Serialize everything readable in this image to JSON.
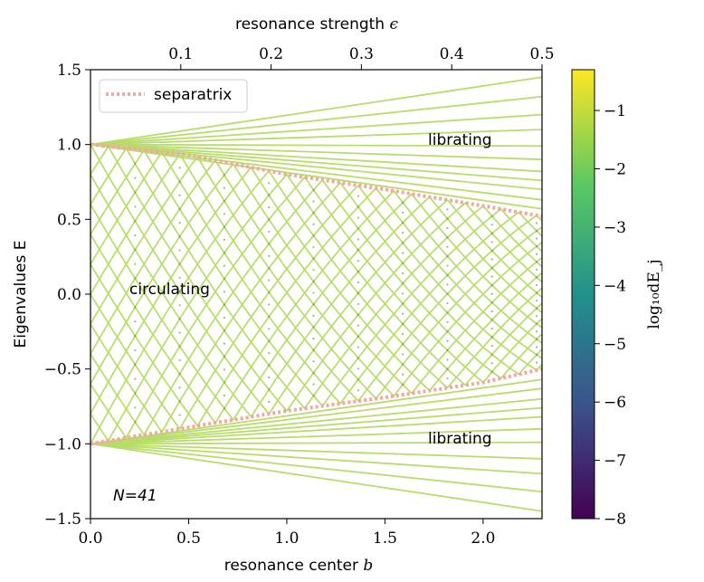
{
  "chart_data": {
    "type": "line",
    "xlabel": "resonance center",
    "xlabel_var": "b",
    "top_xlabel": "resonance strength",
    "top_xlabel_var": "ϵ",
    "ylabel": "Eigenvalues E",
    "colorbar_label": "log₁₀dE_j",
    "xlim": [
      0.0,
      2.3
    ],
    "ylim": [
      -1.5,
      1.5
    ],
    "top_xlim": [
      0.0,
      0.5
    ],
    "xticks": [
      "0.0",
      "0.5",
      "1.0",
      "1.5",
      "2.0"
    ],
    "yticks": [
      "−1.5",
      "−1.0",
      "−0.5",
      "0.0",
      "0.5",
      "1.0",
      "1.5"
    ],
    "top_xticks": [
      "0.1",
      "0.2",
      "0.3",
      "0.4",
      "0.5"
    ],
    "colorbar_range": [
      -8,
      -0.3
    ],
    "colorbar_ticks": [
      "−1",
      "−2",
      "−3",
      "−4",
      "−5",
      "−6",
      "−7",
      "−8"
    ],
    "colormap": [
      "#440154",
      "#3b528b",
      "#21918c",
      "#5ec962",
      "#fde725"
    ],
    "line_color": "#b8dc6a",
    "separatrix_color": "#f4a6a0",
    "N": 41,
    "legend": {
      "label": "separatrix",
      "position": "upper-left"
    },
    "annotations": {
      "librating_top": "librating",
      "librating_bottom": "librating",
      "circulating": "circulating",
      "n_label": "N=41"
    },
    "separatrix_upper": [
      [
        0.0,
        1.0
      ],
      [
        0.5,
        0.93
      ],
      [
        1.0,
        0.8
      ],
      [
        1.5,
        0.7
      ],
      [
        2.0,
        0.59
      ],
      [
        2.3,
        0.52
      ]
    ],
    "separatrix_lower": [
      [
        0.0,
        -1.0
      ],
      [
        0.5,
        -0.89
      ],
      [
        1.0,
        -0.78
      ],
      [
        1.5,
        -0.69
      ],
      [
        2.0,
        -0.59
      ],
      [
        2.3,
        -0.5
      ]
    ],
    "librating_edge_values_at_b_2_3": [
      1.45,
      1.32,
      1.2,
      1.1,
      0.99,
      0.9,
      0.82,
      0.76,
      0.7,
      0.63,
      0.57,
      -0.57,
      -0.63,
      -0.7,
      -0.76,
      -0.82,
      -0.9,
      -0.99,
      -1.1,
      -1.2,
      -1.32,
      -1.45
    ]
  }
}
